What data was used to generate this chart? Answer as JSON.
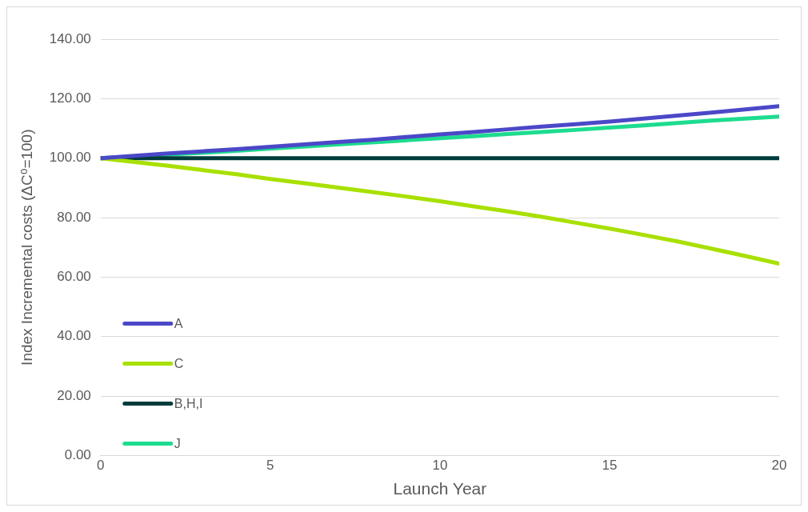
{
  "chart_data": {
    "type": "line",
    "xlabel": "Launch Year",
    "ylabel": "Index Incremental costs (ΔC⁰=100)",
    "x": [
      0,
      1,
      2,
      3,
      4,
      5,
      6,
      7,
      8,
      9,
      10,
      11,
      12,
      13,
      14,
      15,
      16,
      17,
      18,
      19,
      20
    ],
    "xlim": [
      0,
      20
    ],
    "xticks": [
      0,
      5,
      10,
      15,
      20
    ],
    "ylim": [
      0,
      140
    ],
    "yticks": [
      {
        "value": 0,
        "label": "0.00"
      },
      {
        "value": 20,
        "label": "20.00"
      },
      {
        "value": 40,
        "label": "40.00"
      },
      {
        "value": 60,
        "label": "60.00"
      },
      {
        "value": 80,
        "label": "80.00"
      },
      {
        "value": 100,
        "label": "100.00"
      },
      {
        "value": 120,
        "label": "120.00"
      },
      {
        "value": 140,
        "label": "140.00"
      }
    ],
    "grid": "y",
    "legend": "bottom left",
    "marker": "none",
    "line_style": "solid",
    "series": [
      {
        "name": "A",
        "color": "#4b48c8",
        "values": [
          100,
          100.8,
          101.6,
          102.3,
          103.0,
          103.8,
          104.6,
          105.4,
          106.2,
          107.1,
          108.0,
          108.8,
          109.7,
          110.6,
          111.4,
          112.3,
          113.3,
          114.3,
          115.3,
          116.4,
          117.5
        ]
      },
      {
        "name": "C",
        "color": "#a8e000",
        "values": [
          100,
          98.7,
          97.4,
          96.0,
          94.6,
          93.0,
          91.6,
          90.1,
          88.6,
          87.1,
          85.5,
          83.8,
          82.1,
          80.3,
          78.3,
          76.3,
          74.2,
          72.0,
          69.6,
          67.1,
          64.5
        ]
      },
      {
        "name": "B,H,I",
        "color": "#003c3c",
        "values": [
          100,
          100,
          100,
          100,
          100,
          100,
          100,
          100,
          100,
          100,
          100,
          100,
          100,
          100,
          100,
          100,
          100,
          100,
          100,
          100,
          100
        ]
      },
      {
        "name": "J",
        "color": "#1ddc8f",
        "values": [
          100,
          100.6,
          101.2,
          101.8,
          102.5,
          103.2,
          103.9,
          104.6,
          105.3,
          106.0,
          106.7,
          107.4,
          108.1,
          108.8,
          109.5,
          110.3,
          111.0,
          111.8,
          112.6,
          113.3,
          114.0
        ]
      }
    ]
  }
}
